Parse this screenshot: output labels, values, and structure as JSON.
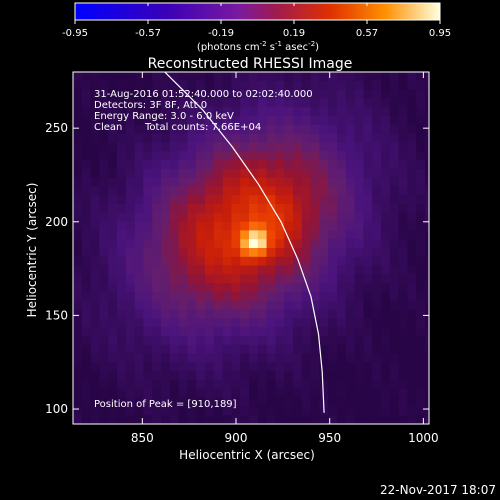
{
  "colorbar": {
    "ticks": [
      "-0.95",
      "-0.57",
      "-0.19",
      "0.19",
      "0.57",
      "0.95"
    ],
    "unit_label": "(photons cm",
    "unit_exp1": "-2",
    "unit_s": " s",
    "unit_exp2": "-1",
    "unit_asec": " asec",
    "unit_exp3": "-2",
    "unit_close": ")",
    "range": [
      -0.95,
      0.95
    ]
  },
  "chart_data": {
    "type": "heatmap",
    "title": "Reconstructed RHESSI Image",
    "xlabel": "Heliocentric X (arcsec)",
    "ylabel": "Heliocentric Y (arcsec)",
    "xlim": [
      813,
      1003
    ],
    "ylim": [
      92,
      280
    ],
    "x_ticks": [
      850,
      900,
      950,
      1000
    ],
    "y_ticks": [
      100,
      150,
      200,
      250
    ],
    "peak": [
      910,
      189
    ],
    "annotations": [
      "31-Aug-2016 01:52:40.000 to 02:02:40.000",
      "Detectors: 3F 8F, Att 0",
      "Energy Range: 3.0 - 6.0 keV",
      "Clean",
      "Total counts: 7.66E+04",
      "Position of Peak = [910,189]"
    ],
    "limb_curve": [
      [
        860,
        282
      ],
      [
        882,
        260
      ],
      [
        898,
        240
      ],
      [
        912,
        220
      ],
      [
        924,
        200
      ],
      [
        933,
        180
      ],
      [
        940,
        160
      ],
      [
        944,
        140
      ],
      [
        946,
        120
      ],
      [
        947,
        98
      ]
    ]
  },
  "timestamp": "22-Nov-2017 18:07"
}
